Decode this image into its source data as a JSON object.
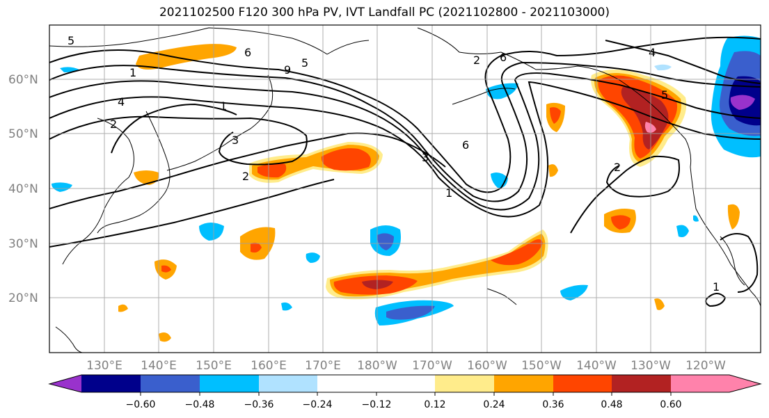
{
  "title": "2021102500 F120 300 hPa PV, IVT Landfall PC (2021102800 - 2021103000)",
  "latitude_labels": [
    "60°N",
    "50°N",
    "40°N",
    "30°N",
    "20°N"
  ],
  "longitude_labels": [
    "130°E",
    "140°E",
    "150°E",
    "160°E",
    "170°E",
    "180°W",
    "170°W",
    "160°W",
    "150°W",
    "140°W",
    "130°W",
    "120°W"
  ],
  "colorbar": {
    "tick_labels": [
      "−0.60",
      "−0.48",
      "−0.36",
      "−0.24",
      "−0.12",
      "0.12",
      "0.24",
      "0.36",
      "0.48",
      "0.60"
    ],
    "colors": [
      "#9932cc",
      "#00008b",
      "#3a5fcd",
      "#00bfff",
      "#b0e2ff",
      "#ffffff",
      "#ffec8b",
      "#ffa500",
      "#ff4500",
      "#b22222",
      "#ff82ab"
    ]
  },
  "contour_labels": [
    "5",
    "6",
    "1",
    "4",
    "5",
    "6",
    "2",
    "9",
    "1",
    "3",
    "2",
    "3",
    "6",
    "2",
    "1",
    "4",
    "5",
    "2",
    "1"
  ]
}
